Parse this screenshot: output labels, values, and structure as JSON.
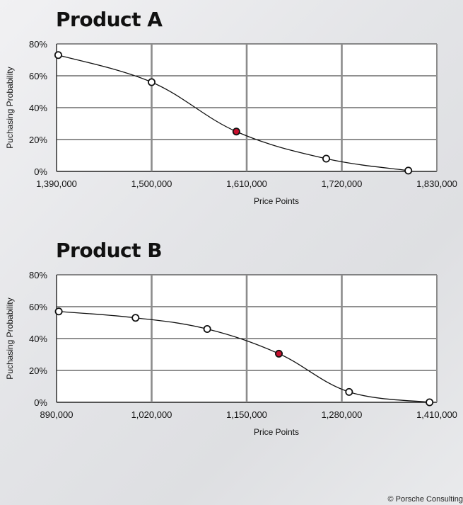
{
  "chart_data": [
    {
      "type": "line",
      "title": "Product A",
      "xlabel": "Price Points",
      "ylabel": "Puchasing Probability",
      "x_ticks": [
        1390000,
        1500000,
        1610000,
        1720000,
        1830000
      ],
      "x_tick_labels": [
        "1,390,000",
        "1,500,000",
        "1,610,000",
        "1,720,000",
        "1,830,000"
      ],
      "y_ticks": [
        0,
        20,
        40,
        60,
        80
      ],
      "y_tick_labels": [
        "0%",
        "20%",
        "40%",
        "60%",
        "80%"
      ],
      "xlim": [
        1390000,
        1830000
      ],
      "ylim": [
        0,
        80
      ],
      "grid": true,
      "series": [
        {
          "x": [
            1392000,
            1500000,
            1598000,
            1702000,
            1797000
          ],
          "y": [
            73,
            56,
            25,
            8,
            0.5
          ],
          "highlight_index": 2
        }
      ]
    },
    {
      "type": "line",
      "title": "Product B",
      "xlabel": "Price Points",
      "ylabel": "Puchasing Probability",
      "x_ticks": [
        890000,
        1020000,
        1150000,
        1280000,
        1410000
      ],
      "x_tick_labels": [
        "890,000",
        "1,020,000",
        "1,150,000",
        "1,280,000",
        "1,410,000"
      ],
      "y_ticks": [
        0,
        20,
        40,
        60,
        80
      ],
      "y_tick_labels": [
        "0%",
        "20%",
        "40%",
        "60%",
        "80%"
      ],
      "xlim": [
        890000,
        1410000
      ],
      "ylim": [
        0,
        80
      ],
      "grid": true,
      "series": [
        {
          "x": [
            893000,
            998000,
            1096000,
            1194000,
            1290000,
            1400000
          ],
          "y": [
            57,
            53,
            46,
            30.5,
            6.5,
            0
          ],
          "highlight_index": 3
        }
      ]
    }
  ],
  "colors": {
    "highlight": "#c8102e",
    "line": "#111111",
    "grid": "#222222",
    "plot_background": "#ffffff"
  },
  "footer": {
    "copyright": "© Porsche Consulting"
  }
}
